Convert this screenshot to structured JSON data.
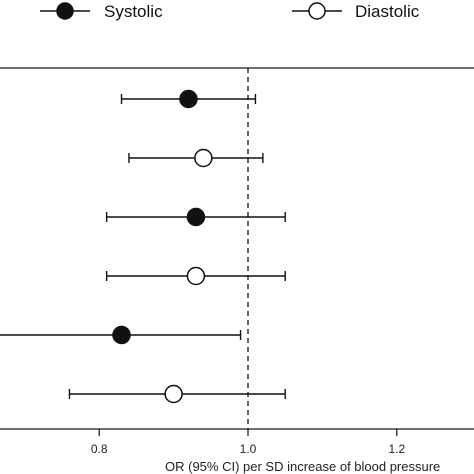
{
  "chart_data": {
    "type": "scatter",
    "xlabel": "OR (95% CI) per SD increase of blood pressure",
    "xlim": [
      0.67,
      1.32
    ],
    "xticks": [
      0.8,
      1.0,
      1.2
    ],
    "xtick_labels": [
      "0.8",
      "1.0",
      "1.2"
    ],
    "reference_line": 1.0,
    "legend": {
      "placement": "top",
      "entries": [
        {
          "label": "Systolic",
          "marker": "filled-circle"
        },
        {
          "label": "Diastolic",
          "marker": "open-circle"
        }
      ]
    },
    "series": [
      {
        "name": "Systolic",
        "marker": "filled-circle",
        "points": [
          {
            "row": 1,
            "or": 0.92,
            "ci_low": 0.83,
            "ci_high": 1.01
          },
          {
            "row": 3,
            "or": 0.93,
            "ci_low": 0.81,
            "ci_high": 1.05
          },
          {
            "row": 5,
            "or": 0.83,
            "ci_low": 0.66,
            "ci_high": 0.99
          }
        ]
      },
      {
        "name": "Diastolic",
        "marker": "open-circle",
        "points": [
          {
            "row": 2,
            "or": 0.94,
            "ci_low": 0.84,
            "ci_high": 1.02
          },
          {
            "row": 4,
            "or": 0.93,
            "ci_low": 0.81,
            "ci_high": 1.05
          },
          {
            "row": 6,
            "or": 0.9,
            "ci_low": 0.76,
            "ci_high": 1.05
          }
        ]
      }
    ],
    "colors": {
      "ink": "#111111",
      "marker_fill": "#111111",
      "open_fill": "#ffffff"
    }
  }
}
